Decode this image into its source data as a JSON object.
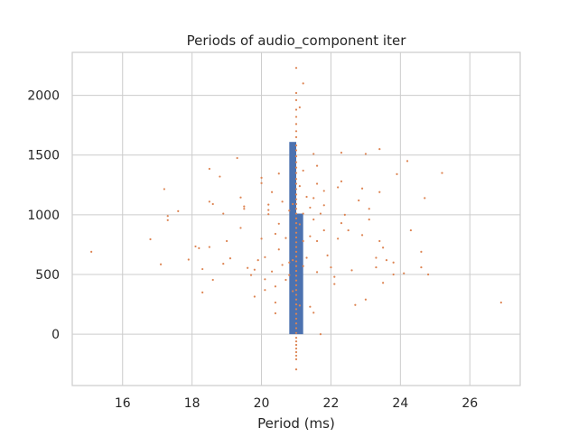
{
  "chart_data": {
    "type": "bar",
    "overlay_type": "scatter",
    "title": "Periods of audio_component iter",
    "xlabel": "Period (ms)",
    "ylabel": "",
    "xlim": [
      14.55,
      27.45
    ],
    "ylim": [
      -430,
      2360
    ],
    "xticks": [
      16,
      18,
      20,
      22,
      24,
      26
    ],
    "yticks": [
      0,
      500,
      1000,
      1500,
      2000
    ],
    "grid": true,
    "legend": "none",
    "colors": {
      "bars": "#4c72b0",
      "points": "#dd8452",
      "grid": "#cccccc",
      "frame": "#cccccc"
    },
    "histogram": {
      "bins": [
        {
          "x0": 20.8,
          "x1": 21.0,
          "count": 1610
        },
        {
          "x0": 21.0,
          "x1": 21.2,
          "count": 1010
        }
      ]
    },
    "points": [
      [
        15.1,
        690
      ],
      [
        16.8,
        795
      ],
      [
        17.1,
        585
      ],
      [
        17.2,
        1215
      ],
      [
        17.3,
        990
      ],
      [
        17.3,
        955
      ],
      [
        17.6,
        1030
      ],
      [
        17.9,
        625
      ],
      [
        18.1,
        735
      ],
      [
        18.2,
        720
      ],
      [
        18.3,
        545
      ],
      [
        18.3,
        350
      ],
      [
        18.5,
        1110
      ],
      [
        18.5,
        730
      ],
      [
        18.5,
        1385
      ],
      [
        18.6,
        1090
      ],
      [
        18.6,
        455
      ],
      [
        18.8,
        1320
      ],
      [
        18.9,
        1010
      ],
      [
        18.9,
        590
      ],
      [
        19.0,
        780
      ],
      [
        19.1,
        635
      ],
      [
        19.3,
        1475
      ],
      [
        19.4,
        890
      ],
      [
        19.4,
        1145
      ],
      [
        19.5,
        1050
      ],
      [
        19.5,
        1070
      ],
      [
        19.6,
        555
      ],
      [
        19.7,
        495
      ],
      [
        19.8,
        315
      ],
      [
        19.8,
        540
      ],
      [
        19.9,
        620
      ],
      [
        20.0,
        1265
      ],
      [
        20.0,
        1310
      ],
      [
        20.0,
        800
      ],
      [
        20.1,
        370
      ],
      [
        20.1,
        645
      ],
      [
        20.1,
        460
      ],
      [
        20.2,
        1040
      ],
      [
        20.2,
        1085
      ],
      [
        20.2,
        1005
      ],
      [
        20.3,
        1190
      ],
      [
        20.3,
        525
      ],
      [
        20.4,
        265
      ],
      [
        20.4,
        175
      ],
      [
        20.4,
        400
      ],
      [
        20.4,
        840
      ],
      [
        20.5,
        925
      ],
      [
        20.5,
        1345
      ],
      [
        20.5,
        710
      ],
      [
        20.6,
        580
      ],
      [
        20.6,
        1110
      ],
      [
        20.7,
        455
      ],
      [
        20.7,
        805
      ],
      [
        20.8,
        600
      ],
      [
        20.8,
        1035
      ],
      [
        20.8,
        495
      ],
      [
        20.9,
        1090
      ],
      [
        20.9,
        620
      ],
      [
        20.9,
        360
      ],
      [
        21.0,
        2230
      ],
      [
        21.0,
        2020
      ],
      [
        21.0,
        1960
      ],
      [
        21.0,
        1880
      ],
      [
        21.0,
        1820
      ],
      [
        21.0,
        1760
      ],
      [
        21.0,
        1700
      ],
      [
        21.0,
        1650
      ],
      [
        21.0,
        1580
      ],
      [
        21.0,
        1540
      ],
      [
        21.0,
        1490
      ],
      [
        21.0,
        1440
      ],
      [
        21.0,
        1395
      ],
      [
        21.0,
        1350
      ],
      [
        21.0,
        1300
      ],
      [
        21.0,
        1260
      ],
      [
        21.0,
        1215
      ],
      [
        21.0,
        1170
      ],
      [
        21.0,
        1130
      ],
      [
        21.0,
        1090
      ],
      [
        21.0,
        1050
      ],
      [
        21.0,
        1010
      ],
      [
        21.0,
        970
      ],
      [
        21.0,
        930
      ],
      [
        21.0,
        890
      ],
      [
        21.0,
        850
      ],
      [
        21.0,
        810
      ],
      [
        21.0,
        770
      ],
      [
        21.0,
        730
      ],
      [
        21.0,
        690
      ],
      [
        21.0,
        650
      ],
      [
        21.0,
        610
      ],
      [
        21.0,
        570
      ],
      [
        21.0,
        530
      ],
      [
        21.0,
        490
      ],
      [
        21.0,
        450
      ],
      [
        21.0,
        410
      ],
      [
        21.0,
        370
      ],
      [
        21.0,
        330
      ],
      [
        21.0,
        290
      ],
      [
        21.0,
        250
      ],
      [
        21.0,
        210
      ],
      [
        21.0,
        170
      ],
      [
        21.0,
        130
      ],
      [
        21.0,
        90
      ],
      [
        21.0,
        50
      ],
      [
        21.0,
        10
      ],
      [
        21.0,
        -30
      ],
      [
        21.0,
        -60
      ],
      [
        21.0,
        -90
      ],
      [
        21.0,
        -120
      ],
      [
        21.0,
        -150
      ],
      [
        21.0,
        -180
      ],
      [
        21.0,
        -210
      ],
      [
        21.0,
        -295
      ],
      [
        21.1,
        1900
      ],
      [
        21.1,
        1240
      ],
      [
        21.1,
        920
      ],
      [
        21.1,
        240
      ],
      [
        21.2,
        2100
      ],
      [
        21.2,
        1370
      ],
      [
        21.2,
        1010
      ],
      [
        21.2,
        780
      ],
      [
        21.2,
        570
      ],
      [
        21.3,
        1150
      ],
      [
        21.3,
        640
      ],
      [
        21.4,
        1060
      ],
      [
        21.4,
        820
      ],
      [
        21.4,
        230
      ],
      [
        21.5,
        1140
      ],
      [
        21.5,
        1510
      ],
      [
        21.5,
        960
      ],
      [
        21.5,
        180
      ],
      [
        21.6,
        1260
      ],
      [
        21.6,
        780
      ],
      [
        21.6,
        520
      ],
      [
        21.6,
        1410
      ],
      [
        21.7,
        1010
      ],
      [
        21.7,
        0
      ],
      [
        21.8,
        1200
      ],
      [
        21.8,
        870
      ],
      [
        21.8,
        1080
      ],
      [
        21.9,
        660
      ],
      [
        22.0,
        560
      ],
      [
        22.1,
        480
      ],
      [
        22.1,
        420
      ],
      [
        22.2,
        800
      ],
      [
        22.2,
        1230
      ],
      [
        22.3,
        930
      ],
      [
        22.3,
        1280
      ],
      [
        22.3,
        1520
      ],
      [
        22.4,
        1000
      ],
      [
        22.5,
        870
      ],
      [
        22.6,
        535
      ],
      [
        22.7,
        245
      ],
      [
        22.8,
        1120
      ],
      [
        22.9,
        830
      ],
      [
        22.9,
        1220
      ],
      [
        23.0,
        1510
      ],
      [
        23.0,
        290
      ],
      [
        23.1,
        1050
      ],
      [
        23.1,
        960
      ],
      [
        23.3,
        560
      ],
      [
        23.3,
        640
      ],
      [
        23.4,
        1550
      ],
      [
        23.4,
        780
      ],
      [
        23.4,
        1190
      ],
      [
        23.5,
        430
      ],
      [
        23.5,
        725
      ],
      [
        23.6,
        620
      ],
      [
        23.8,
        600
      ],
      [
        23.8,
        500
      ],
      [
        23.9,
        1340
      ],
      [
        24.1,
        510
      ],
      [
        24.2,
        1450
      ],
      [
        24.3,
        870
      ],
      [
        24.6,
        690
      ],
      [
        24.6,
        560
      ],
      [
        24.7,
        1140
      ],
      [
        24.8,
        500
      ],
      [
        25.2,
        1350
      ],
      [
        26.9,
        265
      ]
    ]
  }
}
